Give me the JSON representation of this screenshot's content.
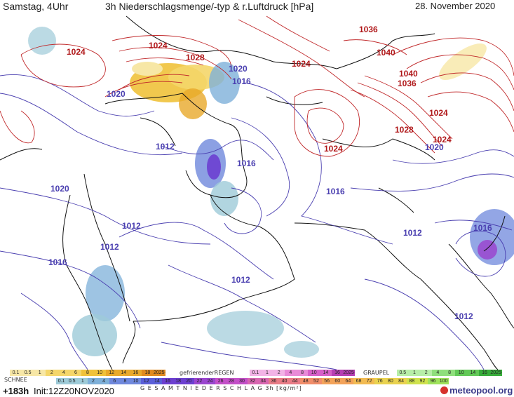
{
  "header": {
    "day_time": "Samstag, 4Uhr",
    "title": "3h Niederschlagsmenge/-typ & r.Luftdruck [hPa]",
    "date": "28. November 2020"
  },
  "pressure_labels": {
    "high_red": [
      "1036",
      "1024",
      "1040",
      "1024",
      "1028",
      "1024",
      "1040",
      "1036",
      "1024",
      "1028",
      "1024",
      "1024"
    ],
    "low_blue": [
      "1020",
      "1016",
      "1020",
      "1012",
      "1016",
      "1020",
      "1020",
      "1016",
      "1012",
      "1012",
      "1016",
      "1012",
      "1016",
      "1012",
      "1012"
    ]
  },
  "legend": {
    "snow": {
      "label": "SCHNEE",
      "ticks": [
        "0.1",
        "0.5",
        "1",
        "2",
        "4",
        "6",
        "8",
        "10",
        "12",
        "14",
        "16",
        "18",
        "2025+"
      ]
    },
    "freezing_rain": {
      "label": "gefrierenderREGEN",
      "ticks": [
        "0.1",
        "1",
        "2",
        "4",
        "8",
        "10",
        "14",
        "16",
        "2025+"
      ]
    },
    "graupel": {
      "label": "GRAUPEL",
      "ticks": [
        "0.5",
        "1",
        "2",
        "4",
        "8",
        "10",
        "14",
        "16",
        "2025+"
      ]
    },
    "total": {
      "label": "G E S A M T N I E D E R S C H L A G  3h  [kg/m²]",
      "ticks": [
        "0.1",
        "0.5",
        "1",
        "2",
        "4",
        "6",
        "8",
        "10",
        "12",
        "14",
        "16",
        "18",
        "20",
        "22",
        "24",
        "26",
        "28",
        "30",
        "32",
        "34",
        "36",
        "40",
        "44",
        "48",
        "52",
        "56",
        "60",
        "64",
        "68",
        "72",
        "76",
        "80",
        "84",
        "88",
        "92",
        "96",
        "100"
      ]
    }
  },
  "footer": {
    "forecast_hour": "+183h",
    "init": "Init:12Z20NOV2020",
    "brand": "meteopool.org"
  },
  "colors": {
    "isobar_low": "#4a3fb0",
    "isobar_high": "#c0282a",
    "snow_scale": [
      "#f7e7a6",
      "#f4d66a",
      "#f0c23b",
      "#e9a92b",
      "#e08a1f"
    ],
    "total_scale": [
      "#9ecbd8",
      "#7eb0d9",
      "#6f88dc",
      "#5a5fd8",
      "#6c3fd0",
      "#9a45cf",
      "#c34fc8",
      "#d866b0",
      "#e87b86",
      "#f08d6a",
      "#f3a35a",
      "#f2bb52",
      "#e9d24f",
      "#cfe24d",
      "#9fe35b"
    ],
    "freezing_rain_scale": [
      "#f2b3e6",
      "#e98ad8",
      "#d75fc8",
      "#b63fb3"
    ],
    "graupel_scale": [
      "#b7eea8",
      "#8fdf7d",
      "#62c957",
      "#38ad3b"
    ]
  }
}
